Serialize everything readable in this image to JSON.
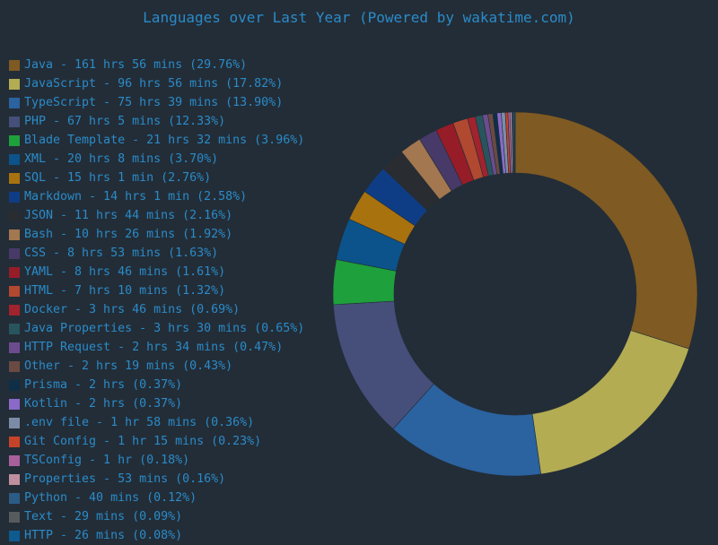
{
  "chart_data": {
    "type": "pie",
    "title": "Languages over Last Year (Powered by wakatime.com)",
    "legend_position": "left",
    "slices": [
      {
        "label": "Java - 161 hrs 56 mins (29.76%)",
        "value": 29.76,
        "color": "#7f5a22"
      },
      {
        "label": "JavaScript - 96 hrs 56 mins (17.82%)",
        "value": 17.82,
        "color": "#b3ac52"
      },
      {
        "label": "TypeScript - 75 hrs 39 mins (13.90%)",
        "value": 13.9,
        "color": "#2b62a0"
      },
      {
        "label": "PHP - 67 hrs 5 mins (12.33%)",
        "value": 12.33,
        "color": "#454f7a"
      },
      {
        "label": "Blade Template - 21 hrs 32 mins (3.96%)",
        "value": 3.96,
        "color": "#1ea03c"
      },
      {
        "label": "XML - 20 hrs 8 mins (3.70%)",
        "value": 3.7,
        "color": "#0b538a"
      },
      {
        "label": "SQL - 15 hrs 1 min (2.76%)",
        "value": 2.76,
        "color": "#a8720f"
      },
      {
        "label": "Markdown - 14 hrs 1 min (2.58%)",
        "value": 2.58,
        "color": "#0f3d85"
      },
      {
        "label": "JSON - 11 hrs 44 mins (2.16%)",
        "value": 2.16,
        "color": "#292c30"
      },
      {
        "label": "Bash - 10 hrs 26 mins (1.92%)",
        "value": 1.92,
        "color": "#a3774f"
      },
      {
        "label": "CSS - 8 hrs 53 mins (1.63%)",
        "value": 1.63,
        "color": "#483a68"
      },
      {
        "label": "YAML - 8 hrs 46 mins (1.61%)",
        "value": 1.61,
        "color": "#961c28"
      },
      {
        "label": "HTML - 7 hrs 10 mins (1.32%)",
        "value": 1.32,
        "color": "#b14830"
      },
      {
        "label": "Docker - 3 hrs 46 mins (0.69%)",
        "value": 0.69,
        "color": "#a0232d"
      },
      {
        "label": "Java Properties - 3 hrs 30 mins (0.65%)",
        "value": 0.65,
        "color": "#28545e"
      },
      {
        "label": "HTTP Request - 2 hrs 34 mins (0.47%)",
        "value": 0.47,
        "color": "#6c4c8e"
      },
      {
        "label": "Other - 2 hrs 19 mins (0.43%)",
        "value": 0.43,
        "color": "#6a4a43"
      },
      {
        "label": "Prisma - 2 hrs (0.37%)",
        "value": 0.37,
        "color": "#0f2e47"
      },
      {
        "label": "Kotlin - 2 hrs (0.37%)",
        "value": 0.37,
        "color": "#8a69c9"
      },
      {
        "label": ".env file - 1 hr 58 mins (0.36%)",
        "value": 0.36,
        "color": "#7c8ca6"
      },
      {
        "label": "Git Config - 1 hr 15 mins (0.23%)",
        "value": 0.23,
        "color": "#c64329"
      },
      {
        "label": "TSConfig - 1 hr (0.18%)",
        "value": 0.18,
        "color": "#a7609c"
      },
      {
        "label": "Properties - 53 mins (0.16%)",
        "value": 0.16,
        "color": "#bf8f9f"
      },
      {
        "label": "Python - 40 mins (0.12%)",
        "value": 0.12,
        "color": "#2c5b86"
      },
      {
        "label": "Text - 29 mins (0.09%)",
        "value": 0.09,
        "color": "#575b5e"
      },
      {
        "label": "HTTP - 26 mins (0.08%)",
        "value": 0.08,
        "color": "#0d5b8f"
      }
    ]
  }
}
